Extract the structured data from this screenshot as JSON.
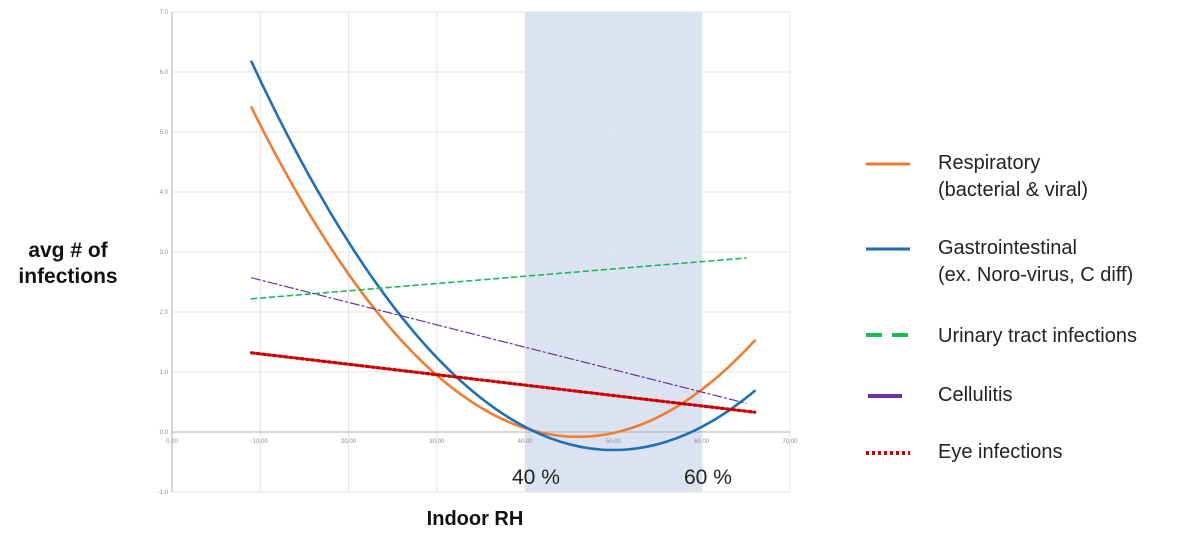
{
  "chart_data": {
    "type": "line",
    "xlabel": "Indoor RH",
    "ylabel_lines": [
      "avg # of",
      "infections"
    ],
    "xlim": [
      0,
      70
    ],
    "ylim": [
      -1,
      7
    ],
    "x_ticks": [
      "0.00",
      "10.00",
      "20.00",
      "30.00",
      "40.00",
      "50.00",
      "60.00",
      "70.00"
    ],
    "y_ticks": [
      "-1.0",
      "0.0",
      "1.0",
      "2.0",
      "3.0",
      "4.0",
      "5.0",
      "6.0",
      "7.0"
    ],
    "x_tick_values": [
      0,
      10,
      20,
      30,
      40,
      50,
      60,
      70
    ],
    "y_tick_values": [
      -1,
      0,
      1,
      2,
      3,
      4,
      5,
      6,
      7
    ],
    "grid": true,
    "shaded_band": {
      "x_range": [
        40,
        60
      ],
      "color": "#dbe3f3",
      "labels": [
        "40 %",
        "60 %"
      ]
    },
    "series": [
      {
        "key": "respiratory",
        "kind": "quadratic",
        "x_range": [
          9,
          66
        ],
        "vertex": [
          46,
          -0.08
        ],
        "a": 0.00401,
        "color": "#ed7d31",
        "style": "solid",
        "name_lines": [
          "Respiratory",
          "(bacterial & viral)"
        ]
      },
      {
        "key": "gastrointestinal",
        "kind": "quadratic",
        "x_range": [
          9,
          66
        ],
        "vertex": [
          50,
          -0.3
        ],
        "a": 0.00385,
        "color": "#1f6fb4",
        "style": "solid",
        "name_lines": [
          "Gastrointestinal",
          "(ex. Noro-virus, C diff)"
        ]
      },
      {
        "key": "urinary",
        "kind": "linear",
        "x": [
          9,
          65
        ],
        "y": [
          2.22,
          2.9
        ],
        "color": "#1db954",
        "style": "dashed",
        "name_lines": [
          "Urinary tract infections"
        ]
      },
      {
        "key": "cellulitis",
        "kind": "linear",
        "x": [
          9,
          65
        ],
        "y": [
          2.57,
          0.48
        ],
        "color": "#7030a0",
        "style": "dashdot",
        "name_lines": [
          "Cellulitis"
        ]
      },
      {
        "key": "eye",
        "kind": "linear",
        "x": [
          9,
          66
        ],
        "y": [
          1.32,
          0.33
        ],
        "color": "#cc0000",
        "style": "dotted",
        "name_lines": [
          "Eye infections"
        ]
      }
    ]
  }
}
